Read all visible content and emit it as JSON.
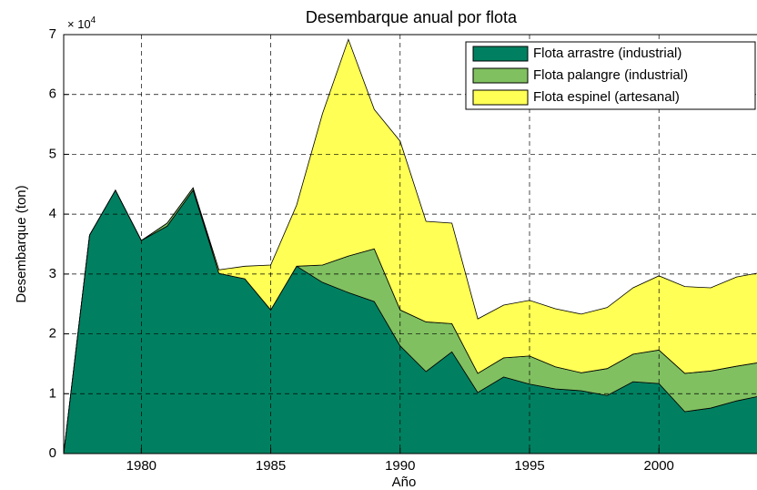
{
  "chart_data": {
    "type": "stacked_area",
    "title": "Desembarque anual por flota",
    "xlabel": "Año",
    "ylabel": "Desembarque (ton)",
    "y_multiplier": "× 10",
    "y_multiplier_exp": "4",
    "x": [
      1977,
      1978,
      1979,
      1980,
      1981,
      1982,
      1983,
      1984,
      1985,
      1986,
      1987,
      1988,
      1989,
      1990,
      1991,
      1992,
      1993,
      1994,
      1995,
      1996,
      1997,
      1998,
      1999,
      2000,
      2001,
      2002,
      2003,
      2004
    ],
    "series": [
      {
        "name": "Flota arrastre (industrial)",
        "color": "#008060",
        "values": [
          0,
          36500,
          44000,
          35600,
          38000,
          44000,
          30100,
          29200,
          24000,
          31300,
          28600,
          26900,
          25400,
          18000,
          13700,
          17000,
          10200,
          12800,
          11600,
          10800,
          10500,
          9700,
          12000,
          11700,
          7000,
          7600,
          8800,
          9700
        ]
      },
      {
        "name": "Flota palangre (industrial)",
        "color": "#80c060",
        "values": [
          0,
          0,
          0,
          0,
          500,
          400,
          0,
          0,
          0,
          0,
          2900,
          6100,
          8800,
          6000,
          8300,
          4700,
          3200,
          3200,
          4700,
          3700,
          3000,
          4500,
          4600,
          5600,
          6400,
          6200,
          5800,
          5600
        ]
      },
      {
        "name": "Flota espinel (artesanal)",
        "color": "#ffff55",
        "values": [
          0,
          0,
          0,
          0,
          0,
          0,
          600,
          2100,
          7500,
          10200,
          25300,
          36200,
          23300,
          28200,
          16800,
          16800,
          9100,
          8800,
          9300,
          9700,
          9800,
          10200,
          11100,
          12400,
          14500,
          13900,
          14900,
          15000
        ]
      }
    ],
    "xlim": [
      1977,
      2004
    ],
    "xticks": [
      1980,
      1985,
      1990,
      1995,
      2000
    ],
    "ylim": [
      0,
      70000
    ],
    "yticks": [
      0,
      {
        "value": 10000,
        "label": "1"
      },
      {
        "value": 20000,
        "label": "2"
      },
      {
        "value": 30000,
        "label": "3"
      },
      {
        "value": 40000,
        "label": "4"
      },
      {
        "value": 50000,
        "label": "5"
      },
      {
        "value": 60000,
        "label": "6"
      },
      {
        "value": 70000,
        "label": "7"
      }
    ],
    "grid": true,
    "legend": "upper right"
  }
}
